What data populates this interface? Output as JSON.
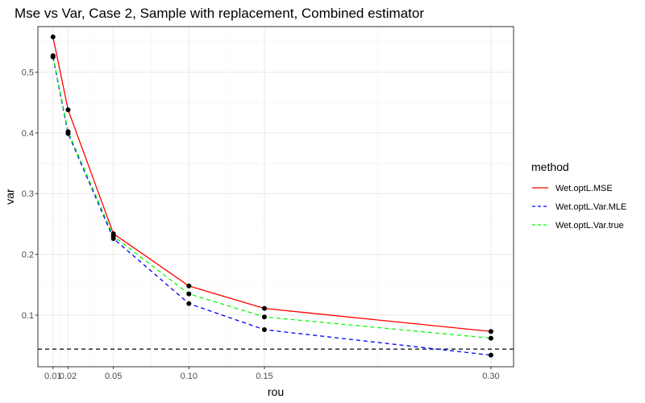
{
  "chart_data": {
    "type": "line",
    "title": "Mse vs Var, Case 2, Sample with replacement, Combined estimator",
    "xlabel": "rou",
    "ylabel": "var",
    "xlim": [
      0,
      0.315
    ],
    "ylim": [
      0.015,
      0.575
    ],
    "x_ticks": [
      {
        "value": 0.01,
        "label": "0.01"
      },
      {
        "value": 0.02,
        "label": "0.02"
      },
      {
        "value": 0.05,
        "label": "0.05"
      },
      {
        "value": 0.1,
        "label": "0.10"
      },
      {
        "value": 0.15,
        "label": "0.15"
      },
      {
        "value": 0.3,
        "label": "0.30"
      }
    ],
    "y_ticks": [
      {
        "value": 0.1,
        "label": "0.1"
      },
      {
        "value": 0.2,
        "label": "0.2"
      },
      {
        "value": 0.3,
        "label": "0.3"
      },
      {
        "value": 0.4,
        "label": "0.4"
      },
      {
        "value": 0.5,
        "label": "0.5"
      }
    ],
    "grid": true,
    "legend_title": "method",
    "legend_position": "right",
    "x": [
      0.01,
      0.02,
      0.05,
      0.1,
      0.15,
      0.3
    ],
    "series": [
      {
        "name": "Wet.optL.MSE",
        "color": "#ff0000",
        "dash": "solid",
        "values": [
          0.558,
          0.438,
          0.234,
          0.148,
          0.111,
          0.073
        ]
      },
      {
        "name": "Wet.optL.Var.MLE",
        "color": "#0000ff",
        "dash": "dashed",
        "values": [
          0.525,
          0.399,
          0.226,
          0.119,
          0.076,
          0.034
        ]
      },
      {
        "name": "Wet.optL.Var.true",
        "color": "#00ff00",
        "dash": "dashed",
        "values": [
          0.527,
          0.402,
          0.23,
          0.135,
          0.097,
          0.062
        ]
      }
    ],
    "reference_line": {
      "y": 0.044,
      "color": "#000000",
      "dash": "dashed"
    }
  }
}
